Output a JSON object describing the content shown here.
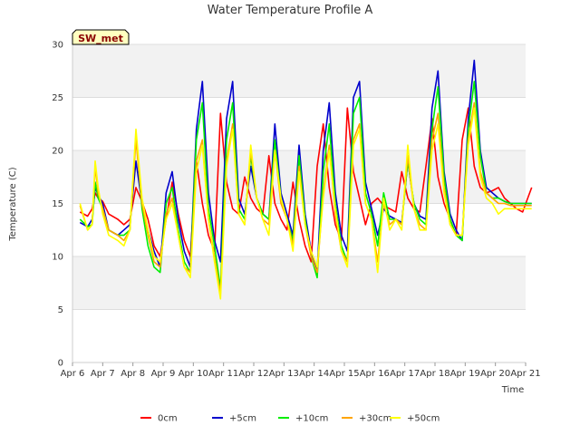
{
  "chart_data": {
    "type": "line",
    "title": "Water Temperature Profile A",
    "xlabel": "Time",
    "ylabel": "Temperature (C)",
    "tag": "SW_met",
    "xlim": [
      "Apr 6",
      "Apr 21"
    ],
    "ylim": [
      0,
      30
    ],
    "x_ticks": [
      "Apr 6",
      "Apr 7",
      "Apr 8",
      "Apr 9",
      "Apr 10",
      "Apr 11",
      "Apr 12",
      "Apr 13",
      "Apr 14",
      "Apr 15",
      "Apr 16",
      "Apr 17",
      "Apr 18",
      "Apr 19",
      "Apr 20",
      "Apr 21"
    ],
    "y_ticks": [
      0,
      5,
      10,
      15,
      20,
      25,
      30
    ],
    "grid": "horizontal bands",
    "legend_position": "bottom",
    "x_unit": "days from Apr 6",
    "series": [
      {
        "name": "0cm",
        "color": "#ff0000",
        "x": [
          0.25,
          0.5,
          0.65,
          0.75,
          0.85,
          1.0,
          1.2,
          1.5,
          1.7,
          1.9,
          2.1,
          2.3,
          2.5,
          2.7,
          2.9,
          3.1,
          3.3,
          3.5,
          3.7,
          3.9,
          4.1,
          4.3,
          4.5,
          4.7,
          4.9,
          5.1,
          5.3,
          5.5,
          5.7,
          5.9,
          6.1,
          6.3,
          6.5,
          6.7,
          6.9,
          7.1,
          7.3,
          7.5,
          7.7,
          7.9,
          8.1,
          8.3,
          8.5,
          8.7,
          8.9,
          9.1,
          9.3,
          9.5,
          9.7,
          9.9,
          10.1,
          10.3,
          10.5,
          10.7,
          10.9,
          11.1,
          11.3,
          11.5,
          11.7,
          11.9,
          12.1,
          12.3,
          12.5,
          12.7,
          12.9,
          13.1,
          13.3,
          13.5,
          13.7,
          13.9,
          14.1,
          14.3,
          14.5,
          14.7,
          14.9,
          15.2
        ],
        "y": [
          14.2,
          13.8,
          14.5,
          16.0,
          15.5,
          15.2,
          14.0,
          13.5,
          13.0,
          13.5,
          16.5,
          15.2,
          13.5,
          11.0,
          10.0,
          13.5,
          17.0,
          14.0,
          11.5,
          10.0,
          19.0,
          15.0,
          12.0,
          10.5,
          23.5,
          17.0,
          14.5,
          14.0,
          17.5,
          15.5,
          14.5,
          14.0,
          19.5,
          15.0,
          13.5,
          12.5,
          17.0,
          13.5,
          11.0,
          9.5,
          18.5,
          22.5,
          16.5,
          13.0,
          11.5,
          24.0,
          18.0,
          15.5,
          13.0,
          15.0,
          15.5,
          14.8,
          14.5,
          14.2,
          18.0,
          15.5,
          14.5,
          14.2,
          18.5,
          23.0,
          17.5,
          15.0,
          13.5,
          12.0,
          21.0,
          24.0,
          18.5,
          16.5,
          16.0,
          16.2,
          16.5,
          15.5,
          15.0,
          14.5,
          14.2,
          16.5
        ]
      },
      {
        "name": "+5cm",
        "color": "#0000cc",
        "x": [
          0.25,
          0.5,
          0.65,
          0.75,
          0.85,
          1.0,
          1.2,
          1.5,
          1.7,
          1.9,
          2.1,
          2.3,
          2.5,
          2.7,
          2.9,
          3.1,
          3.3,
          3.5,
          3.7,
          3.9,
          4.1,
          4.3,
          4.5,
          4.7,
          4.9,
          5.1,
          5.3,
          5.5,
          5.7,
          5.9,
          6.1,
          6.3,
          6.5,
          6.7,
          6.9,
          7.1,
          7.3,
          7.5,
          7.7,
          7.9,
          8.1,
          8.3,
          8.5,
          8.7,
          8.9,
          9.1,
          9.3,
          9.5,
          9.7,
          9.9,
          10.1,
          10.3,
          10.5,
          10.7,
          10.9,
          11.1,
          11.3,
          11.5,
          11.7,
          11.9,
          12.1,
          12.3,
          12.5,
          12.7,
          12.9,
          13.1,
          13.3,
          13.5,
          13.7,
          13.9,
          14.1,
          14.3,
          14.5,
          14.7,
          14.9,
          15.2
        ],
        "y": [
          13.2,
          12.8,
          13.5,
          16.5,
          15.8,
          15.0,
          12.5,
          12.0,
          12.5,
          13.0,
          19.0,
          15.0,
          12.5,
          10.5,
          9.0,
          16.0,
          18.0,
          13.5,
          10.5,
          9.0,
          22.0,
          26.5,
          16.0,
          11.5,
          9.5,
          23.0,
          26.5,
          15.5,
          14.0,
          18.5,
          15.5,
          14.0,
          13.5,
          22.5,
          16.0,
          14.0,
          12.0,
          20.5,
          14.0,
          10.5,
          8.5,
          20.0,
          24.5,
          16.0,
          12.0,
          10.5,
          25.0,
          26.5,
          17.0,
          14.5,
          12.0,
          14.5,
          13.8,
          13.5,
          13.2,
          19.0,
          15.0,
          13.8,
          13.5,
          24.0,
          27.5,
          18.0,
          14.0,
          12.5,
          11.5,
          23.0,
          28.5,
          20.0,
          16.5,
          16.0,
          15.5,
          15.2,
          15.0,
          15.0,
          15.0,
          15.0
        ]
      },
      {
        "name": "+10cm",
        "color": "#00ee00",
        "x": [
          0.25,
          0.5,
          0.65,
          0.75,
          0.85,
          1.0,
          1.2,
          1.5,
          1.7,
          1.9,
          2.1,
          2.3,
          2.5,
          2.7,
          2.9,
          3.1,
          3.3,
          3.5,
          3.7,
          3.9,
          4.1,
          4.3,
          4.5,
          4.7,
          4.9,
          5.1,
          5.3,
          5.5,
          5.7,
          5.9,
          6.1,
          6.3,
          6.5,
          6.7,
          6.9,
          7.1,
          7.3,
          7.5,
          7.7,
          7.9,
          8.1,
          8.3,
          8.5,
          8.7,
          8.9,
          9.1,
          9.3,
          9.5,
          9.7,
          9.9,
          10.1,
          10.3,
          10.5,
          10.7,
          10.9,
          11.1,
          11.3,
          11.5,
          11.7,
          11.9,
          12.1,
          12.3,
          12.5,
          12.7,
          12.9,
          13.1,
          13.3,
          13.5,
          13.7,
          13.9,
          14.1,
          14.3,
          14.5,
          14.7,
          14.9,
          15.2
        ],
        "y": [
          13.5,
          12.8,
          13.0,
          17.0,
          15.5,
          14.5,
          12.5,
          12.0,
          12.0,
          12.5,
          21.5,
          14.5,
          11.0,
          9.0,
          8.5,
          15.0,
          16.5,
          12.5,
          9.5,
          8.5,
          21.0,
          24.5,
          14.5,
          11.0,
          7.0,
          21.0,
          24.5,
          14.5,
          13.5,
          19.5,
          15.5,
          14.0,
          13.5,
          21.0,
          15.5,
          13.5,
          11.5,
          19.5,
          13.5,
          10.0,
          8.0,
          18.0,
          22.5,
          15.0,
          11.0,
          9.5,
          23.5,
          25.0,
          16.0,
          14.0,
          11.0,
          16.0,
          13.5,
          13.5,
          13.0,
          19.0,
          15.0,
          13.5,
          13.0,
          22.0,
          26.0,
          17.5,
          13.5,
          12.0,
          11.5,
          22.0,
          26.5,
          19.5,
          16.0,
          15.5,
          15.5,
          15.2,
          15.0,
          15.0,
          15.0,
          15.0
        ]
      },
      {
        "name": "+30cm",
        "color": "#ffa500",
        "x": [
          0.25,
          0.5,
          0.65,
          0.75,
          0.85,
          1.0,
          1.2,
          1.5,
          1.7,
          1.9,
          2.1,
          2.3,
          2.5,
          2.7,
          2.9,
          3.1,
          3.3,
          3.5,
          3.7,
          3.9,
          4.1,
          4.3,
          4.5,
          4.7,
          4.9,
          5.1,
          5.3,
          5.5,
          5.7,
          5.9,
          6.1,
          6.3,
          6.5,
          6.7,
          6.9,
          7.1,
          7.3,
          7.5,
          7.7,
          7.9,
          8.1,
          8.3,
          8.5,
          8.7,
          8.9,
          9.1,
          9.3,
          9.5,
          9.7,
          9.9,
          10.1,
          10.3,
          10.5,
          10.7,
          10.9,
          11.1,
          11.3,
          11.5,
          11.7,
          11.9,
          12.1,
          12.3,
          12.5,
          12.7,
          12.9,
          13.1,
          13.3,
          13.5,
          13.7,
          13.9,
          14.1,
          14.3,
          14.5,
          14.7,
          14.9,
          15.2
        ],
        "y": [
          14.8,
          12.5,
          13.0,
          18.5,
          16.0,
          14.5,
          12.5,
          12.0,
          11.5,
          12.5,
          21.0,
          15.0,
          12.0,
          9.5,
          9.0,
          14.0,
          15.5,
          12.0,
          9.0,
          8.5,
          19.0,
          21.0,
          13.5,
          10.0,
          6.5,
          19.0,
          22.5,
          14.0,
          13.0,
          20.0,
          15.5,
          13.5,
          13.0,
          20.0,
          15.0,
          13.5,
          11.0,
          18.5,
          13.0,
          10.0,
          8.5,
          16.0,
          20.5,
          14.0,
          10.5,
          9.5,
          21.0,
          22.5,
          15.0,
          13.5,
          9.5,
          15.0,
          13.0,
          13.5,
          13.0,
          19.5,
          14.5,
          13.0,
          12.5,
          21.0,
          23.5,
          16.5,
          13.0,
          12.0,
          12.0,
          21.0,
          24.5,
          18.0,
          16.0,
          15.5,
          15.0,
          15.0,
          14.8,
          14.8,
          14.8,
          14.8
        ]
      },
      {
        "name": "+50cm",
        "color": "#ffff00",
        "x": [
          0.25,
          0.5,
          0.65,
          0.75,
          0.85,
          1.0,
          1.2,
          1.5,
          1.7,
          1.9,
          2.1,
          2.3,
          2.5,
          2.7,
          2.9,
          3.1,
          3.3,
          3.5,
          3.7,
          3.9,
          4.1,
          4.3,
          4.5,
          4.7,
          4.9,
          5.1,
          5.3,
          5.5,
          5.7,
          5.9,
          6.1,
          6.3,
          6.5,
          6.7,
          6.9,
          7.1,
          7.3,
          7.5,
          7.7,
          7.9,
          8.1,
          8.3,
          8.5,
          8.7,
          8.9,
          9.1,
          9.3,
          9.5,
          9.7,
          9.9,
          10.1,
          10.3,
          10.5,
          10.7,
          10.9,
          11.1,
          11.3,
          11.5,
          11.7,
          11.9,
          12.1,
          12.3,
          12.5,
          12.7,
          12.9,
          13.1,
          13.3,
          13.5,
          13.7,
          13.9,
          14.1,
          14.3,
          14.5,
          14.7,
          14.9,
          15.2
        ],
        "y": [
          15.0,
          12.5,
          13.0,
          19.0,
          16.5,
          14.0,
          12.0,
          11.5,
          11.0,
          12.5,
          22.0,
          15.5,
          12.5,
          10.0,
          9.5,
          13.5,
          15.0,
          12.0,
          9.0,
          8.0,
          18.0,
          20.5,
          13.5,
          9.5,
          6.0,
          18.5,
          22.0,
          14.0,
          13.0,
          20.5,
          15.5,
          13.5,
          12.0,
          20.0,
          15.5,
          13.5,
          10.5,
          18.0,
          13.0,
          10.5,
          9.0,
          15.5,
          20.0,
          14.5,
          10.5,
          9.0,
          20.5,
          22.0,
          15.0,
          13.5,
          8.5,
          15.5,
          12.5,
          13.5,
          12.5,
          20.5,
          14.5,
          12.5,
          12.5,
          20.0,
          22.5,
          16.0,
          13.0,
          12.0,
          12.0,
          20.5,
          24.0,
          17.5,
          15.5,
          15.0,
          14.0,
          14.5,
          14.5,
          14.5,
          14.5,
          14.5
        ]
      }
    ]
  }
}
